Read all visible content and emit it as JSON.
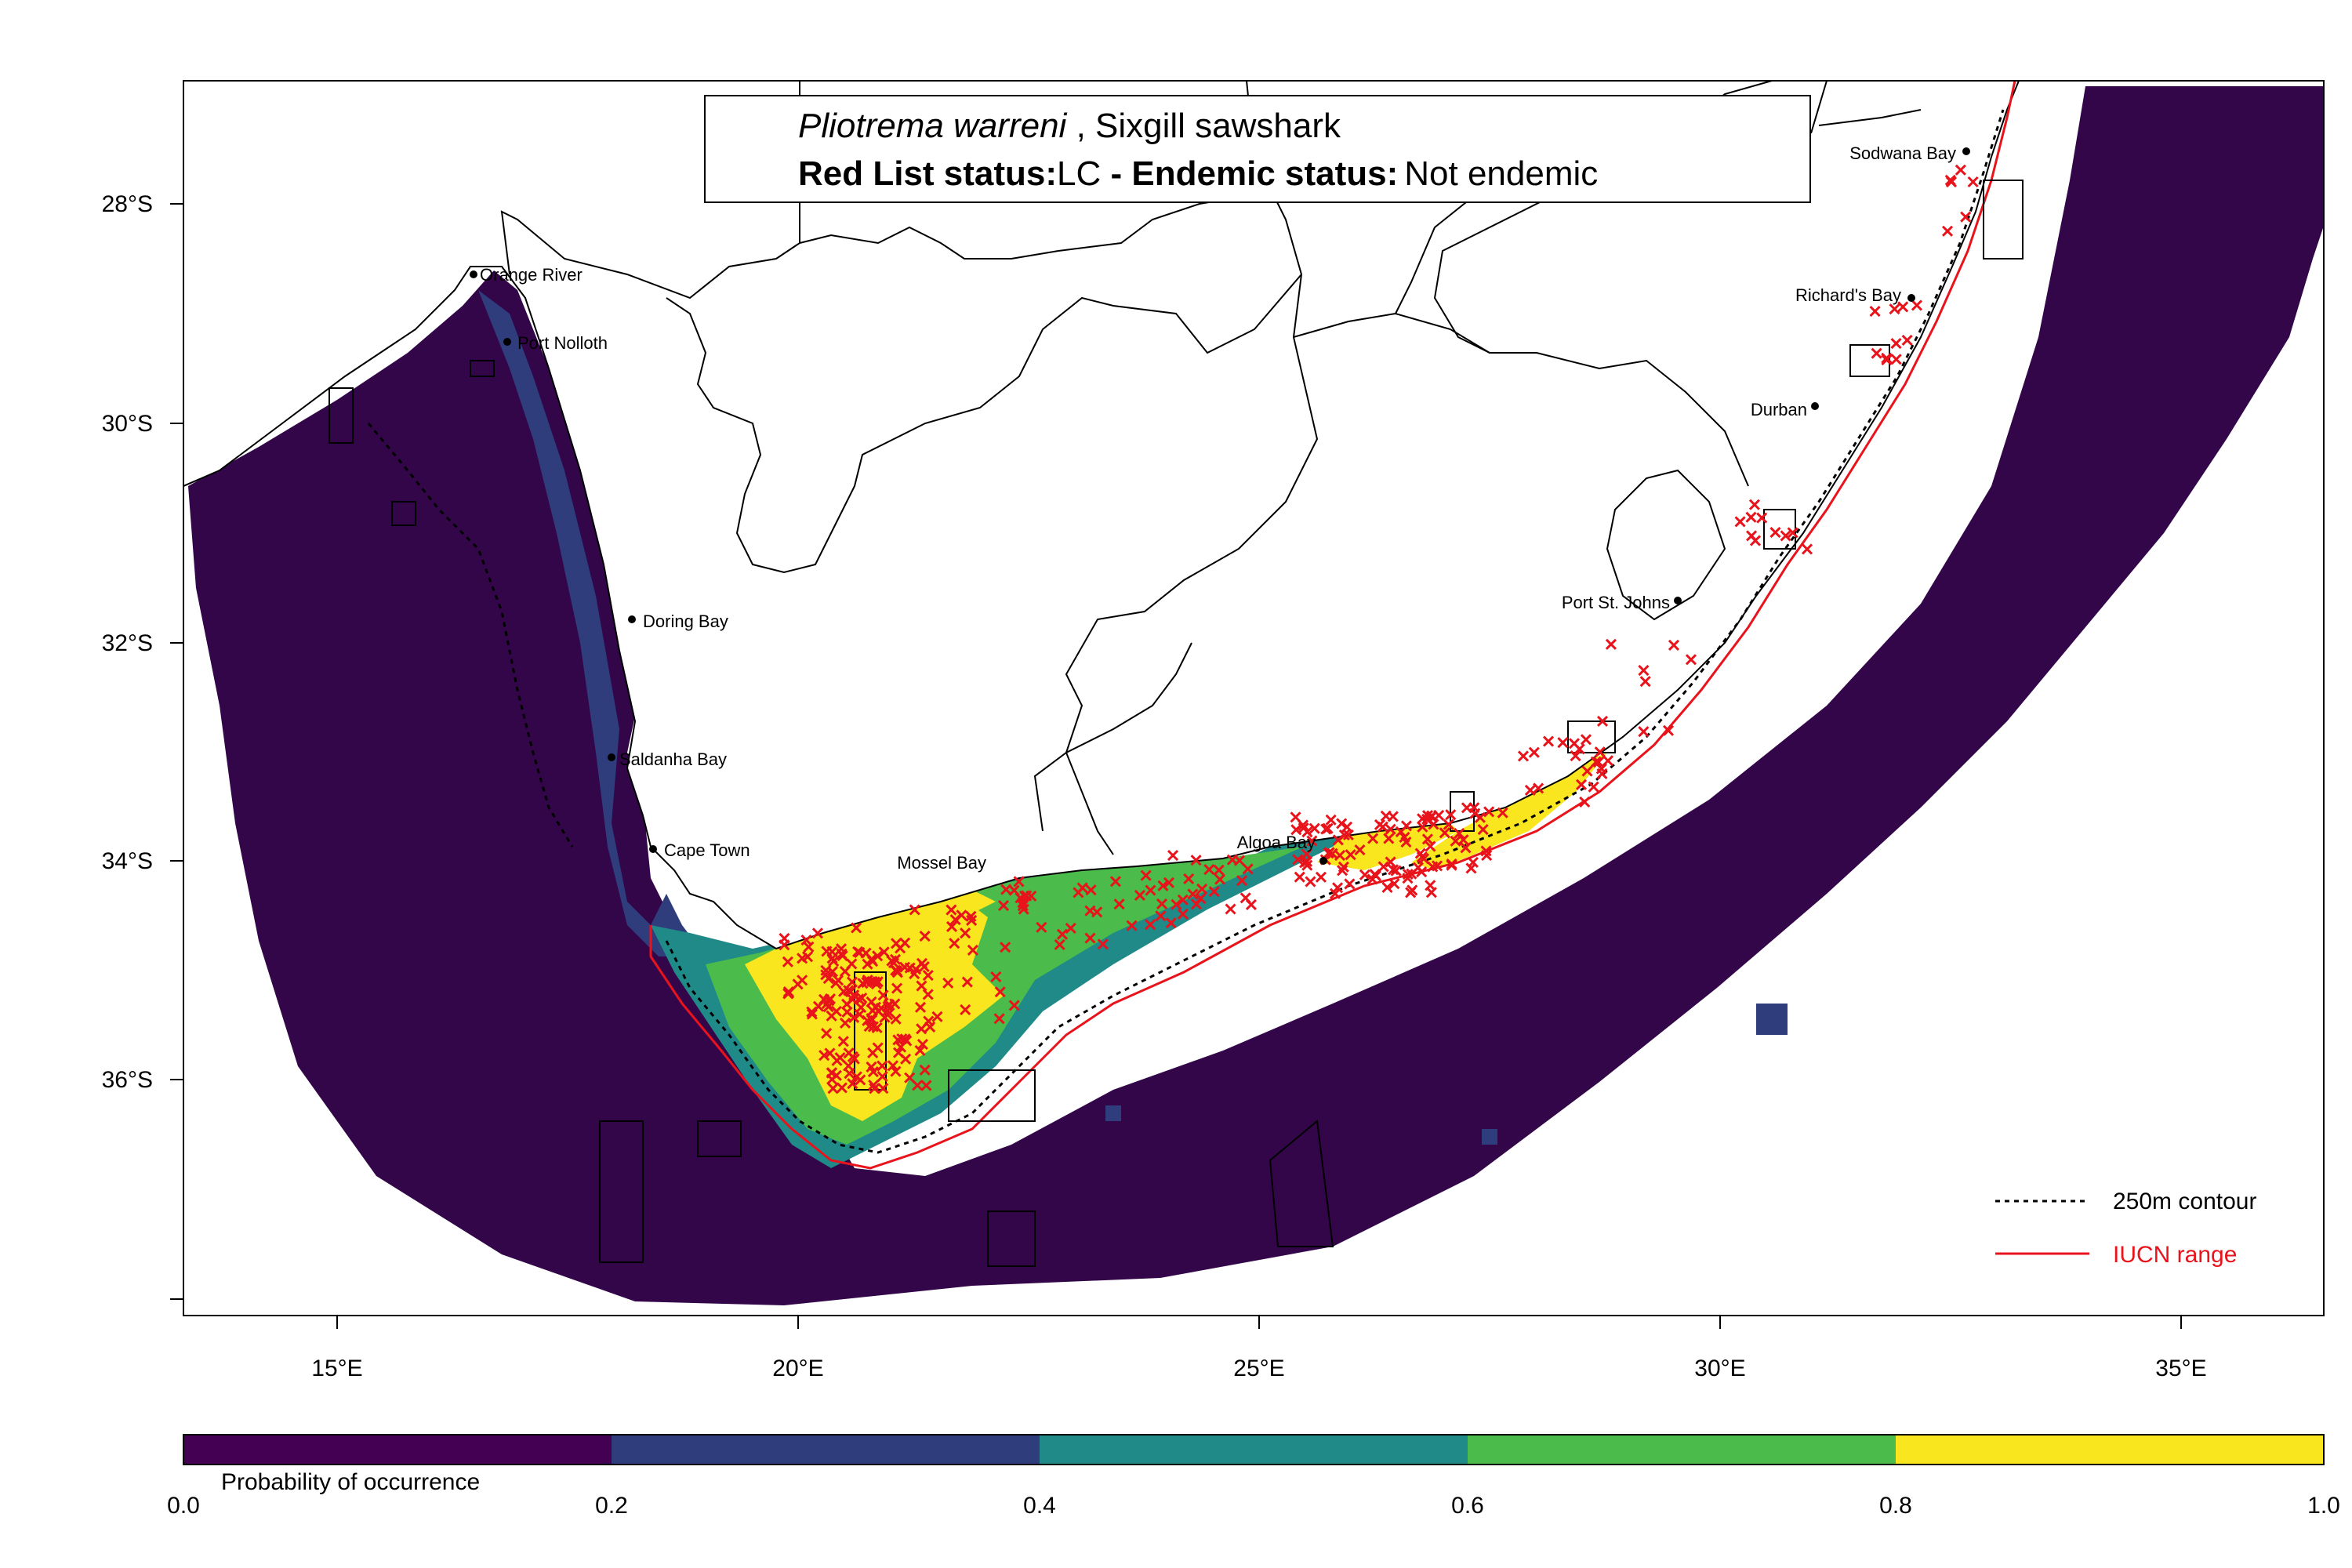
{
  "title": {
    "species": "Pliotrema warreni",
    "common_sep": " , ",
    "common_name": "Sixgill sawshark",
    "red_list_label": "Red List status:",
    "red_list_value": "LC",
    "endemic_label": " - Endemic status:",
    "endemic_value": "Not endemic"
  },
  "axes": {
    "x_ticks": [
      "15°E",
      "20°E",
      "25°E",
      "30°E",
      "35°E"
    ],
    "y_ticks": [
      "28°S",
      "30°S",
      "32°S",
      "34°S",
      "36°S"
    ]
  },
  "towns": [
    "Sodwana Bay",
    "Richard's Bay",
    "Durban",
    "Port St. Johns",
    "Algoa Bay",
    "Mossel Bay",
    "Cape Town",
    "Saldanha Bay",
    "Doring Bay",
    "Port Nolloth",
    "Orange River"
  ],
  "legend": {
    "contour_label": "250m contour",
    "iucn_label": "IUCN range",
    "iucn_color": "#e8131b"
  },
  "colorbar": {
    "title": "Probability of occurrence",
    "ticks": [
      "0.0",
      "0.2",
      "0.4",
      "0.6",
      "0.8",
      "1.0"
    ],
    "colors": [
      "#440154",
      "#2f3d7c",
      "#1f8a88",
      "#4bbb4b",
      "#fae61e"
    ]
  },
  "colors": {
    "ocean_low": "#33064a",
    "occurrence_marker": "#e8131b"
  }
}
